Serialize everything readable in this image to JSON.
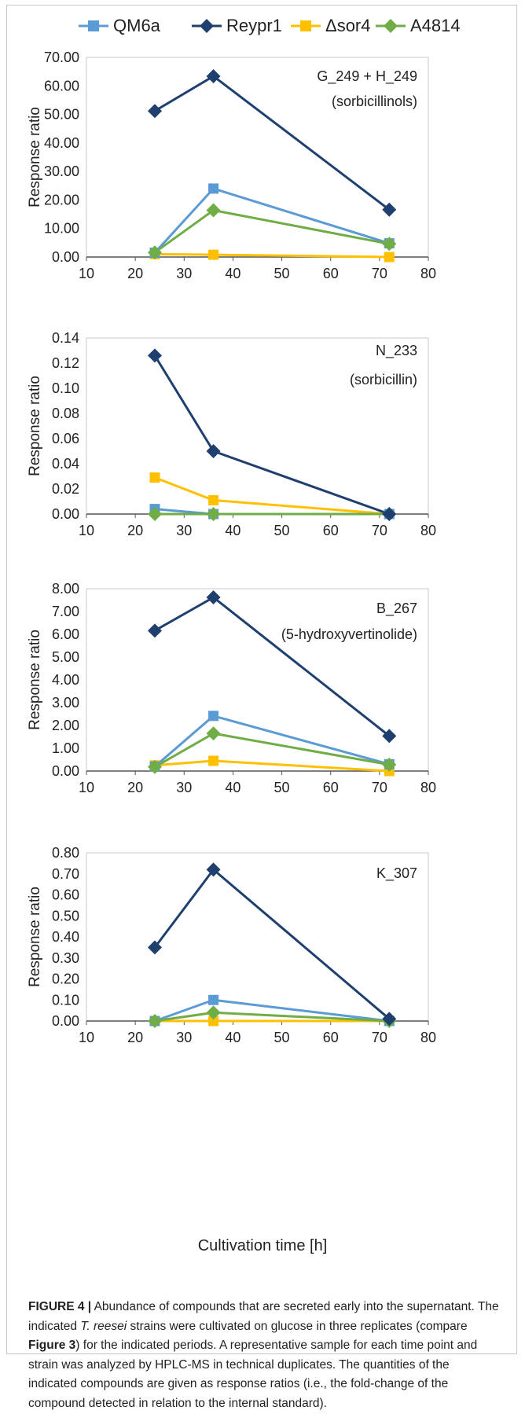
{
  "legend": [
    {
      "name": "QM6a",
      "color": "#5B9BD5"
    },
    {
      "name": "Reypr1",
      "color": "#1F3F6E"
    },
    {
      "name": "Δsor4",
      "color": "#FFC000"
    },
    {
      "name": "A4814",
      "color": "#70AD47"
    }
  ],
  "x_axis_title": "Cultivation time [h]",
  "caption": {
    "label": "FIGURE 4 |",
    "text_1": " Abundance of compounds that are secreted early into the supernatant. The indicated ",
    "species": "T. reesei",
    "text_2": " strains were cultivated on glucose in three replicates (compare ",
    "ref": "Figure 3",
    "text_3": ") for the indicated periods. A representative sample for each time point and strain was analyzed by HPLC-MS in technical duplicates. The quantities of the indicated compounds are given as response ratios (i.e., the fold-change of the compound detected in relation to the internal standard)."
  },
  "chart_data": [
    {
      "type": "line",
      "title": "G_249 + H_249",
      "subtitle": "(sorbicillinols)",
      "ylabel": "Response ratio",
      "xlim": [
        10,
        80
      ],
      "xticks": [
        10,
        20,
        30,
        40,
        50,
        60,
        70,
        80
      ],
      "ylim": [
        0,
        70
      ],
      "yticks": [
        "0.00",
        "10.00",
        "20.00",
        "30.00",
        "40.00",
        "50.00",
        "60.00",
        "70.00"
      ],
      "x": [
        24,
        36,
        72
      ],
      "series": [
        {
          "name": "QM6a",
          "values": [
            1.5,
            24.0,
            4.8
          ]
        },
        {
          "name": "Reypr1",
          "values": [
            51.2,
            63.4,
            16.6
          ]
        },
        {
          "name": "Δsor4",
          "values": [
            1.0,
            0.8,
            0.0
          ]
        },
        {
          "name": "A4814",
          "values": [
            1.6,
            16.4,
            4.6
          ]
        }
      ]
    },
    {
      "type": "line",
      "title": "N_233",
      "subtitle": "(sorbicillin)",
      "ylabel": "Response ratio",
      "xlim": [
        10,
        80
      ],
      "xticks": [
        10,
        20,
        30,
        40,
        50,
        60,
        70,
        80
      ],
      "ylim": [
        0,
        0.14
      ],
      "yticks": [
        "0.00",
        "0.02",
        "0.04",
        "0.06",
        "0.08",
        "0.10",
        "0.12",
        "0.14"
      ],
      "x": [
        24,
        36,
        72
      ],
      "series": [
        {
          "name": "QM6a",
          "values": [
            0.004,
            0.0,
            0.0
          ]
        },
        {
          "name": "Reypr1",
          "values": [
            0.126,
            0.05,
            0.0
          ]
        },
        {
          "name": "Δsor4",
          "values": [
            0.029,
            0.011,
            0.0
          ]
        },
        {
          "name": "A4814",
          "values": [
            0.0,
            0.0,
            0.0
          ]
        }
      ]
    },
    {
      "type": "line",
      "title": "B_267",
      "subtitle": "(5-hydroxyvertinolide)",
      "ylabel": "Response ratio",
      "xlim": [
        10,
        80
      ],
      "xticks": [
        10,
        20,
        30,
        40,
        50,
        60,
        70,
        80
      ],
      "ylim": [
        0,
        8
      ],
      "yticks": [
        "0.00",
        "1.00",
        "2.00",
        "3.00",
        "4.00",
        "5.00",
        "6.00",
        "7.00",
        "8.00"
      ],
      "x": [
        24,
        36,
        72
      ],
      "series": [
        {
          "name": "QM6a",
          "values": [
            0.2,
            2.42,
            0.3
          ]
        },
        {
          "name": "Reypr1",
          "values": [
            6.16,
            7.62,
            1.54
          ]
        },
        {
          "name": "Δsor4",
          "values": [
            0.25,
            0.45,
            0.0
          ]
        },
        {
          "name": "A4814",
          "values": [
            0.18,
            1.65,
            0.28
          ]
        }
      ]
    },
    {
      "type": "line",
      "title": "K_307",
      "subtitle": "",
      "ylabel": "Response ratio",
      "xlim": [
        10,
        80
      ],
      "xticks": [
        10,
        20,
        30,
        40,
        50,
        60,
        70,
        80
      ],
      "ylim": [
        0,
        0.8
      ],
      "yticks": [
        "0.00",
        "0.10",
        "0.20",
        "0.30",
        "0.40",
        "0.50",
        "0.60",
        "0.70",
        "0.80"
      ],
      "x": [
        24,
        36,
        72
      ],
      "series": [
        {
          "name": "QM6a",
          "values": [
            0.0,
            0.1,
            0.0
          ]
        },
        {
          "name": "Reypr1",
          "values": [
            0.35,
            0.72,
            0.01
          ]
        },
        {
          "name": "Δsor4",
          "values": [
            0.0,
            0.0,
            0.0
          ]
        },
        {
          "name": "A4814",
          "values": [
            0.0,
            0.04,
            0.0
          ]
        }
      ]
    }
  ]
}
